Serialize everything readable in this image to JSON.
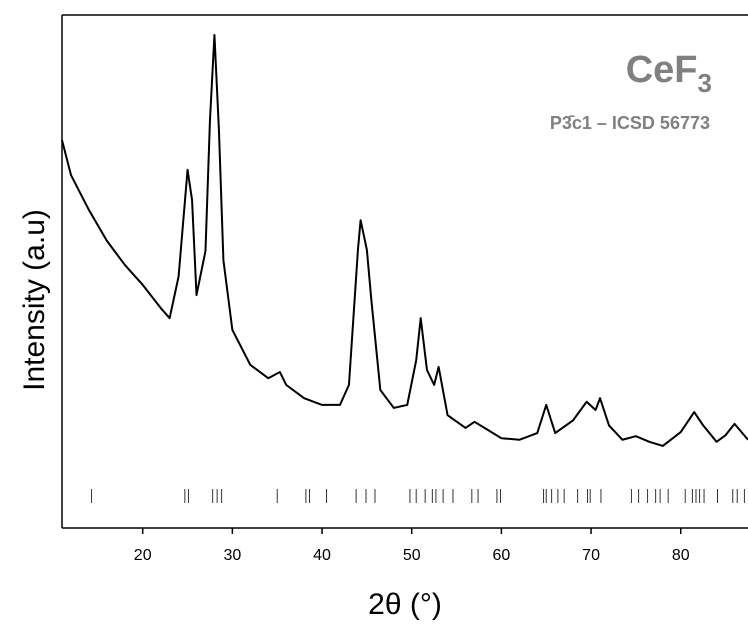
{
  "chart_data": {
    "type": "line",
    "xlabel": "2θ (°)",
    "ylabel": "Intensity (a.u)",
    "annotations": [
      {
        "text": "CeF",
        "subscript": "3"
      },
      {
        "text": "P3̄c1 – ICSD 56773"
      }
    ],
    "x": [
      11,
      12,
      14,
      16,
      18,
      20,
      22,
      23,
      24,
      25,
      25.5,
      26,
      27,
      27.5,
      28,
      28.5,
      29,
      30,
      32,
      34,
      35.3,
      36,
      38,
      40,
      42,
      43,
      44,
      44.3,
      45,
      45.5,
      46.5,
      48,
      49.5,
      50.5,
      51,
      51.7,
      52.5,
      53,
      54,
      56,
      57,
      58.5,
      60,
      62,
      64,
      65,
      66,
      68,
      69.5,
      70.5,
      71,
      72,
      73.5,
      75,
      76.5,
      78,
      80,
      81.5,
      82.5,
      84,
      85,
      86,
      87.5
    ],
    "series": [
      {
        "color": "#000000",
        "values": [
          75.6,
          68.8,
          62,
          56,
          51.3,
          47.4,
          42.9,
          40.9,
          49,
          69.8,
          64,
          45.4,
          54,
          79.5,
          96.1,
          77.6,
          52.2,
          38.6,
          31.8,
          29.2,
          30.4,
          27.9,
          25.3,
          24,
          24,
          27.9,
          54.2,
          60,
          54.2,
          44.4,
          26.9,
          23.4,
          24,
          32.7,
          40.9,
          30.8,
          27.9,
          31.4,
          22,
          19.5,
          20.7,
          19.1,
          17.5,
          17.2,
          18.5,
          24,
          18.5,
          21,
          24.6,
          23,
          25.3,
          20,
          17.2,
          17.9,
          16.8,
          16,
          18.7,
          22.6,
          20,
          16.8,
          18.1,
          20.3,
          17.2
        ]
      }
    ],
    "reference_peaks": [
      14.3,
      24.7,
      25.1,
      27.8,
      28.3,
      28.8,
      35.0,
      38.2,
      38.6,
      40.5,
      43.8,
      44.9,
      45.9,
      49.8,
      50.5,
      51.5,
      52.3,
      52.7,
      53.5,
      54.6,
      56.7,
      57.4,
      59.5,
      59.9,
      64.7,
      65.0,
      65.6,
      66.3,
      67.0,
      68.5,
      69.6,
      69.9,
      71.1,
      74.5,
      75.3,
      76.3,
      77.2,
      77.7,
      78.6,
      80.5,
      81.3,
      81.7,
      82.1,
      82.6,
      84.1,
      85.8,
      86.3,
      87.1
    ],
    "xlim": [
      11,
      87.5
    ],
    "ylim": [
      0,
      100
    ],
    "xticks": [
      20,
      30,
      40,
      50,
      60,
      70,
      80
    ]
  }
}
